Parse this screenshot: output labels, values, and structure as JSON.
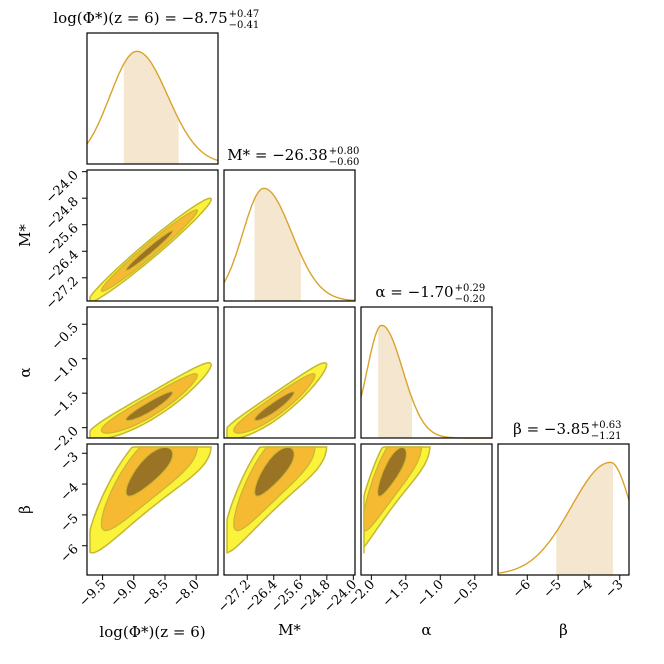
{
  "chart_data": {
    "type": "corner",
    "parameters": [
      {
        "name": "logPhi",
        "label": "log(Φ*)(z = 6)",
        "title_main": "log(Φ*)(z = 6) = −8.75",
        "title_sup": "+0.47",
        "title_sub": "−0.41",
        "median": -8.75,
        "err_plus": 0.47,
        "err_minus": 0.41,
        "range": [
          -9.75,
          -7.65
        ],
        "ticks": [
          -9.5,
          -9.0,
          -8.5,
          -8.0
        ],
        "tick_labels": [
          "−9.5",
          "−9.0",
          "−8.5",
          "−8.0"
        ],
        "peak": -8.95
      },
      {
        "name": "Mstar",
        "label": "M*",
        "title_main": "M* = −26.38",
        "title_sup": "+0.80",
        "title_sub": "−0.60",
        "median": -26.38,
        "err_plus": 0.8,
        "err_minus": 0.6,
        "range": [
          -27.9,
          -23.95
        ],
        "ticks": [
          -27.2,
          -26.4,
          -25.6,
          -24.8,
          -24.0
        ],
        "tick_labels": [
          "−27.2",
          "−26.4",
          "−25.6",
          "−24.8",
          "−24.0"
        ],
        "peak": -26.7
      },
      {
        "name": "alpha",
        "label": "α",
        "title_main": "α = −1.70",
        "title_sup": "+0.29",
        "title_sub": "−0.20",
        "median": -1.7,
        "err_plus": 0.29,
        "err_minus": 0.2,
        "range": [
          -2.15,
          -0.25
        ],
        "ticks": [
          -2.0,
          -1.5,
          -1.0,
          -0.5
        ],
        "tick_labels": [
          "−2.0",
          "−1.5",
          "−1.0",
          "−0.5"
        ],
        "peak": -1.85
      },
      {
        "name": "beta",
        "label": "β",
        "title_main": "β = −3.85",
        "title_sup": "+0.63",
        "title_sub": "−1.21",
        "median": -3.85,
        "err_plus": 0.63,
        "err_minus": 1.21,
        "range": [
          -6.95,
          -2.7
        ],
        "ticks": [
          -6,
          -5,
          -4,
          -3
        ],
        "tick_labels": [
          "−6",
          "−5",
          "−4",
          "−3"
        ],
        "peak": -3.3
      }
    ],
    "contour_levels": [
      "inner (dark)",
      "middle (orange)",
      "outer (yellow)"
    ]
  },
  "colors": {
    "line": "#d9a32b",
    "band": "#f5e7cf",
    "inner": "#9a7424",
    "middle": "#f6b932",
    "outer": "#fbf33a",
    "outline": "#c6b732"
  }
}
